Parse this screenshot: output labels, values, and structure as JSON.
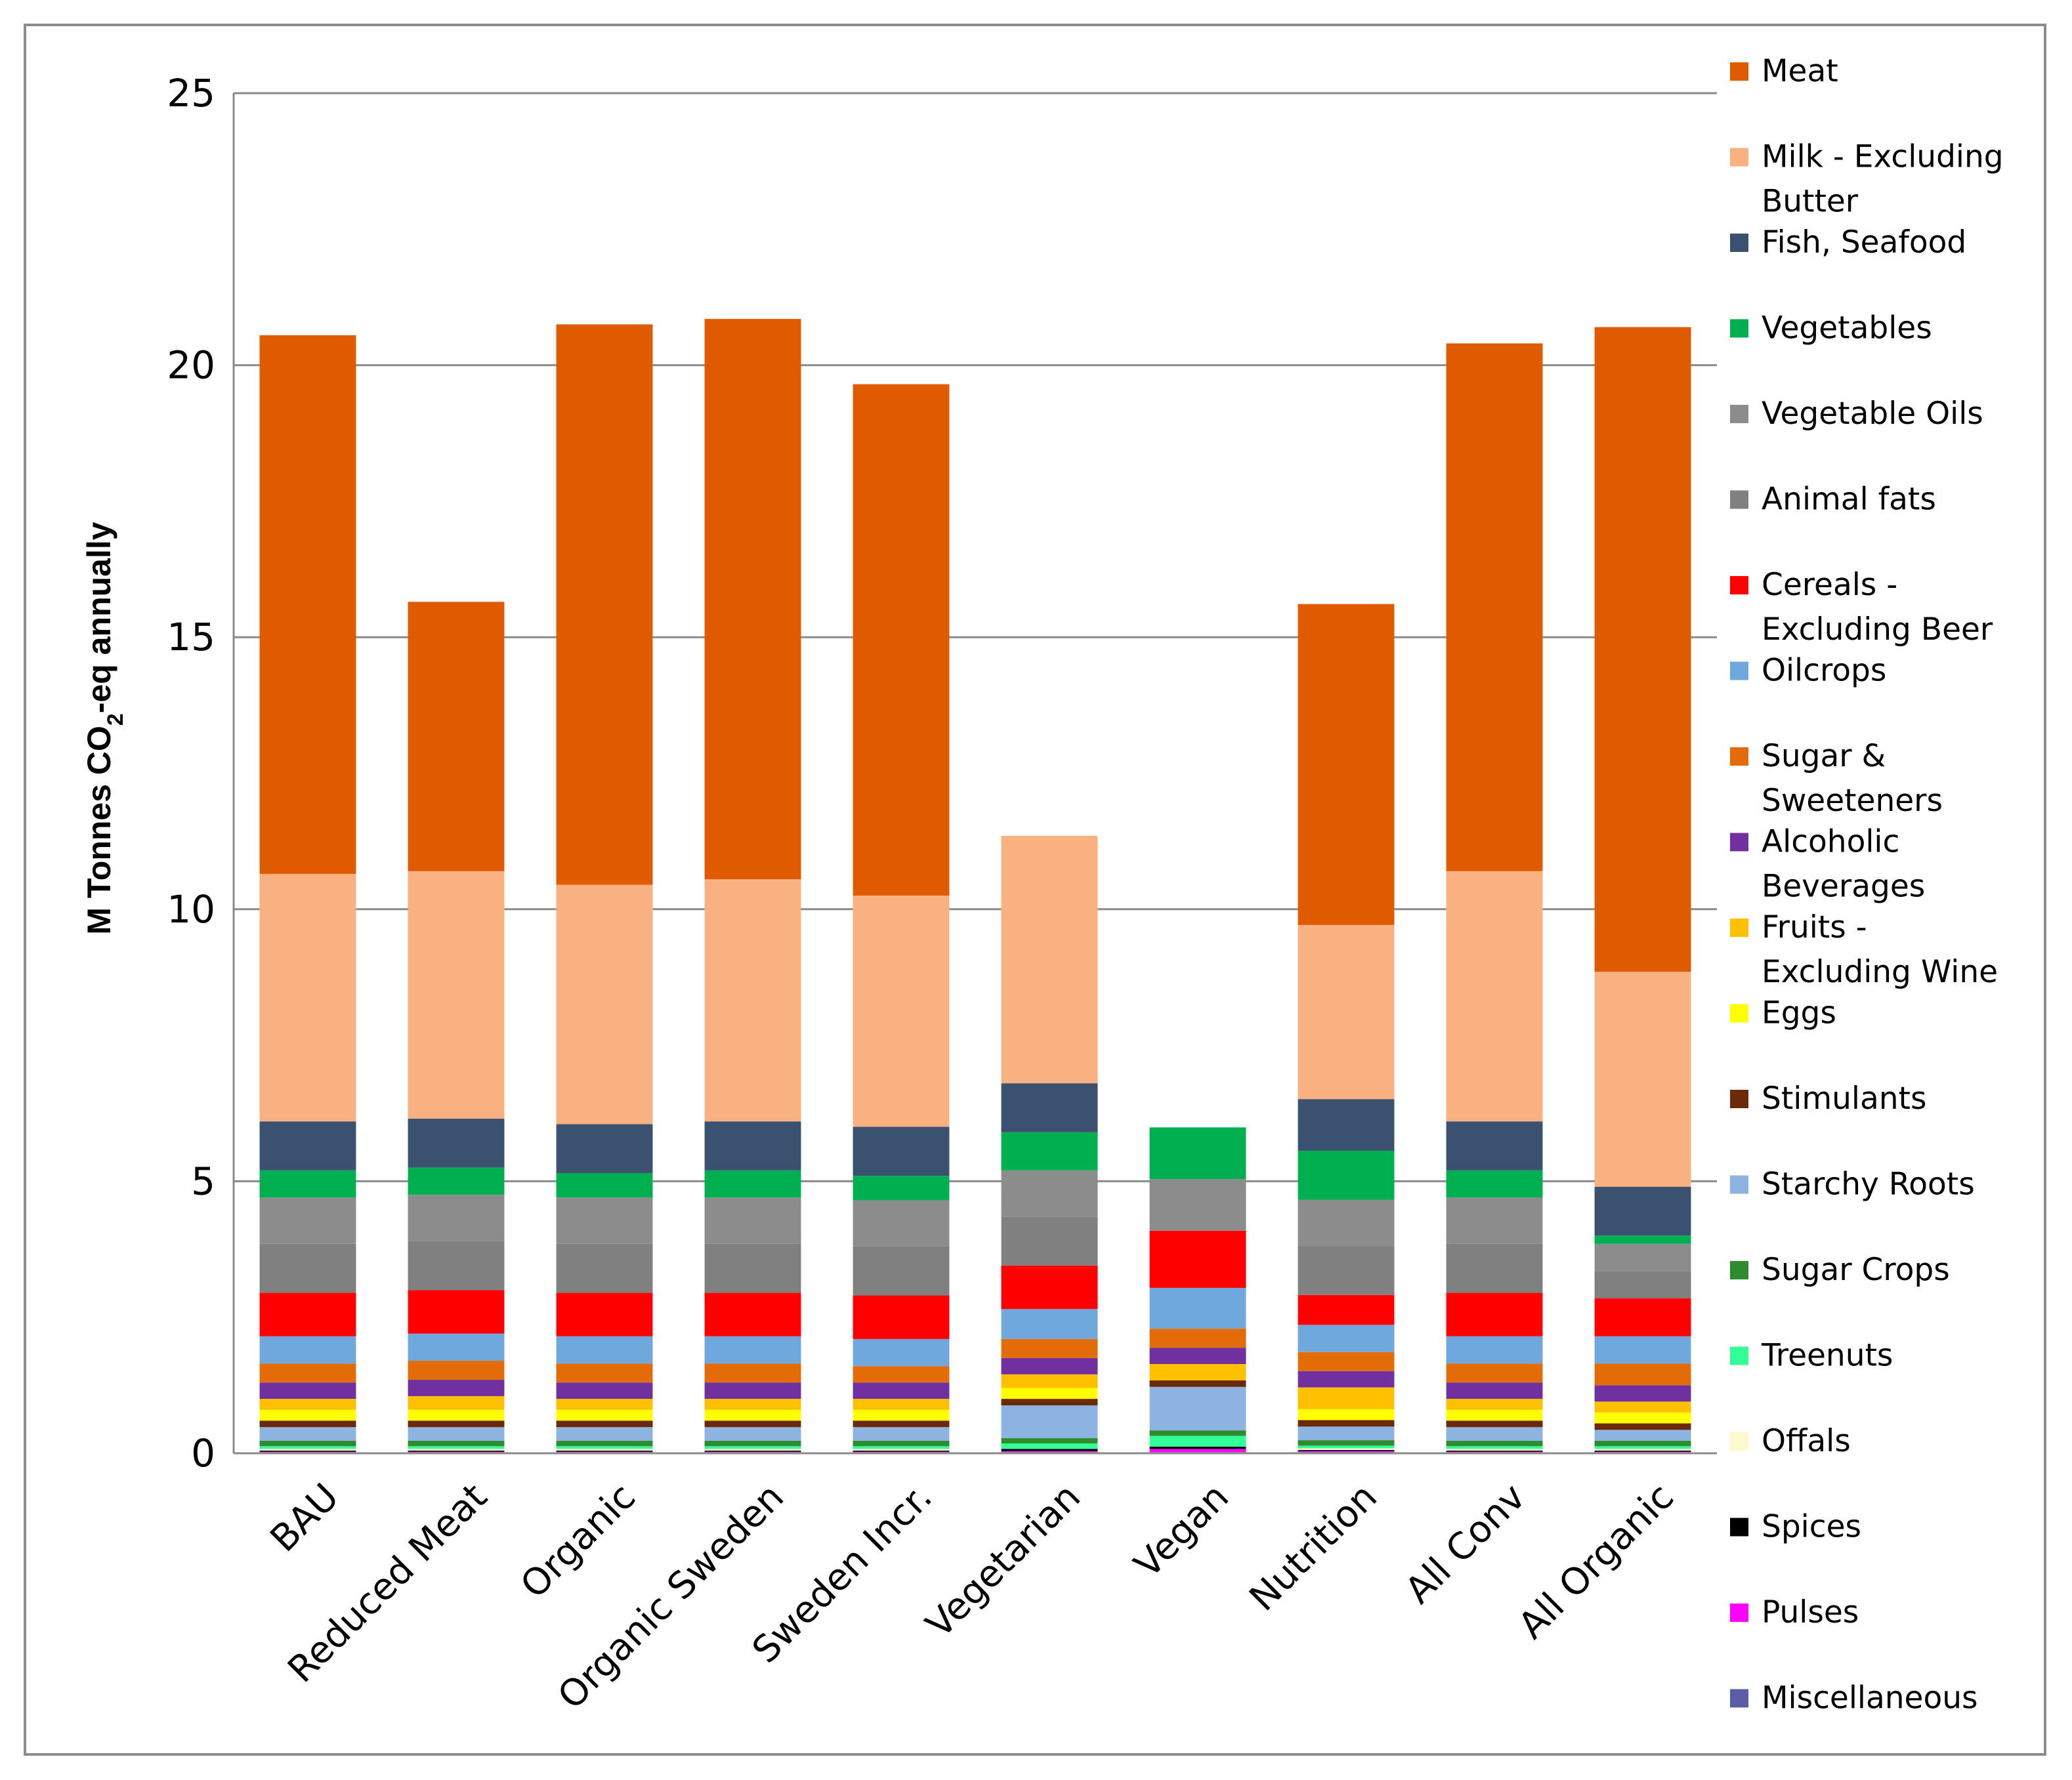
{
  "chart_data": {
    "type": "bar",
    "stacked": true,
    "ylabel": "M Tonnes CO2-eq annually",
    "ylabel_main": "M Tonnes CO",
    "ylabel_sub": "2",
    "ylabel_rest": "-eq annually",
    "ylim": [
      0,
      25
    ],
    "yticks": [
      "0",
      "5",
      "10",
      "15",
      "20",
      "25"
    ],
    "grid": true,
    "legend_position": "right",
    "categories": [
      "BAU",
      "Reduced Meat",
      "Organic",
      "Organic Sweden",
      "Sweden Incr.",
      "Vegetarian",
      "Vegan",
      "Nutrition",
      "All Conv",
      "All Organic"
    ],
    "series": [
      {
        "name": "Miscellaneous",
        "color": "#5b5ea6",
        "values": [
          0.02,
          0.02,
          0.02,
          0.02,
          0.02,
          0.02,
          0.02,
          0.02,
          0.02,
          0.02
        ]
      },
      {
        "name": "Pulses",
        "color": "#ff00ff",
        "values": [
          0.01,
          0.01,
          0.01,
          0.01,
          0.01,
          0.02,
          0.06,
          0.02,
          0.01,
          0.01
        ]
      },
      {
        "name": "Spices",
        "color": "#000000",
        "values": [
          0.02,
          0.02,
          0.02,
          0.02,
          0.02,
          0.04,
          0.04,
          0.02,
          0.02,
          0.02
        ]
      },
      {
        "name": "Offals",
        "color": "#fffacd",
        "values": [
          0.03,
          0.03,
          0.03,
          0.03,
          0.03,
          0.0,
          0.0,
          0.03,
          0.03,
          0.03
        ]
      },
      {
        "name": "Treenuts",
        "color": "#33ff99",
        "values": [
          0.05,
          0.05,
          0.05,
          0.05,
          0.05,
          0.1,
          0.2,
          0.05,
          0.05,
          0.05
        ]
      },
      {
        "name": "Sugar Crops",
        "color": "#2e8b2e",
        "values": [
          0.1,
          0.1,
          0.1,
          0.1,
          0.1,
          0.1,
          0.1,
          0.1,
          0.1,
          0.1
        ]
      },
      {
        "name": "Starchy Roots",
        "color": "#8db3e2",
        "values": [
          0.25,
          0.25,
          0.25,
          0.25,
          0.25,
          0.6,
          0.8,
          0.25,
          0.25,
          0.2
        ]
      },
      {
        "name": "Stimulants",
        "color": "#6b2a0a",
        "values": [
          0.12,
          0.12,
          0.12,
          0.12,
          0.12,
          0.12,
          0.12,
          0.12,
          0.12,
          0.12
        ]
      },
      {
        "name": "Eggs",
        "color": "#ffff00",
        "values": [
          0.2,
          0.2,
          0.2,
          0.2,
          0.2,
          0.2,
          0.0,
          0.2,
          0.2,
          0.2
        ]
      },
      {
        "name": "Fruits - Excluding Wine",
        "color": "#ffc000",
        "values": [
          0.2,
          0.25,
          0.2,
          0.2,
          0.2,
          0.25,
          0.3,
          0.4,
          0.2,
          0.2
        ]
      },
      {
        "name": "Alcoholic Beverages",
        "color": "#7030a0",
        "values": [
          0.3,
          0.3,
          0.3,
          0.3,
          0.3,
          0.3,
          0.3,
          0.3,
          0.3,
          0.3
        ]
      },
      {
        "name": "Sugar & Sweeteners",
        "color": "#e36c09",
        "values": [
          0.35,
          0.35,
          0.35,
          0.35,
          0.3,
          0.35,
          0.35,
          0.35,
          0.35,
          0.4
        ]
      },
      {
        "name": "Oilcrops",
        "color": "#6fa8dc",
        "values": [
          0.5,
          0.5,
          0.5,
          0.5,
          0.5,
          0.55,
          0.75,
          0.5,
          0.5,
          0.5
        ]
      },
      {
        "name": "Cereals - Excluding Beer",
        "color": "#ff0000",
        "values": [
          0.8,
          0.8,
          0.8,
          0.8,
          0.8,
          0.8,
          1.05,
          0.55,
          0.8,
          0.7
        ]
      },
      {
        "name": "Animal fats",
        "color": "#808080",
        "values": [
          0.9,
          0.9,
          0.9,
          0.9,
          0.9,
          0.9,
          0.0,
          0.9,
          0.9,
          0.5
        ]
      },
      {
        "name": "Vegetable Oils",
        "color": "#8c8c8c",
        "values": [
          0.85,
          0.85,
          0.85,
          0.85,
          0.85,
          0.85,
          0.95,
          0.85,
          0.85,
          0.5
        ]
      },
      {
        "name": "Vegetables",
        "color": "#00b050",
        "values": [
          0.5,
          0.5,
          0.45,
          0.5,
          0.45,
          0.7,
          0.95,
          0.9,
          0.5,
          0.15
        ]
      },
      {
        "name": "Fish, Seafood",
        "color": "#3a5170",
        "values": [
          0.9,
          0.9,
          0.9,
          0.9,
          0.9,
          0.9,
          0.0,
          0.95,
          0.9,
          0.9
        ]
      },
      {
        "name": "Milk - Excluding Butter",
        "color": "#fab181",
        "values": [
          4.55,
          4.55,
          4.4,
          4.45,
          4.25,
          4.55,
          0.0,
          3.2,
          4.6,
          3.95
        ]
      },
      {
        "name": "Meat",
        "color": "#e05a00",
        "values": [
          9.9,
          4.95,
          10.3,
          10.3,
          9.4,
          0.0,
          0.0,
          5.9,
          9.7,
          11.85
        ]
      }
    ]
  },
  "legend": [
    {
      "label": [
        "Meat"
      ],
      "color": "#e05a00"
    },
    {
      "label": [
        "Milk - Excluding",
        "Butter"
      ],
      "color": "#fab181"
    },
    {
      "label": [
        "Fish, Seafood"
      ],
      "color": "#3a5170"
    },
    {
      "label": [
        "Vegetables"
      ],
      "color": "#00b050"
    },
    {
      "label": [
        "Vegetable Oils"
      ],
      "color": "#8c8c8c"
    },
    {
      "label": [
        "Animal fats"
      ],
      "color": "#808080"
    },
    {
      "label": [
        "Cereals -",
        "Excluding Beer"
      ],
      "color": "#ff0000"
    },
    {
      "label": [
        "Oilcrops"
      ],
      "color": "#6fa8dc"
    },
    {
      "label": [
        "Sugar &",
        "Sweeteners"
      ],
      "color": "#e36c09"
    },
    {
      "label": [
        "Alcoholic",
        "Beverages"
      ],
      "color": "#7030a0"
    },
    {
      "label": [
        "Fruits -",
        "Excluding Wine"
      ],
      "color": "#ffc000"
    },
    {
      "label": [
        "Eggs"
      ],
      "color": "#ffff00"
    },
    {
      "label": [
        "Stimulants"
      ],
      "color": "#6b2a0a"
    },
    {
      "label": [
        "Starchy Roots"
      ],
      "color": "#8db3e2"
    },
    {
      "label": [
        "Sugar Crops"
      ],
      "color": "#2e8b2e"
    },
    {
      "label": [
        "Treenuts"
      ],
      "color": "#33ff99"
    },
    {
      "label": [
        "Offals"
      ],
      "color": "#fffacd"
    },
    {
      "label": [
        "Spices"
      ],
      "color": "#000000"
    },
    {
      "label": [
        "Pulses"
      ],
      "color": "#ff00ff"
    },
    {
      "label": [
        "Miscellaneous"
      ],
      "color": "#5b5ea6"
    }
  ]
}
